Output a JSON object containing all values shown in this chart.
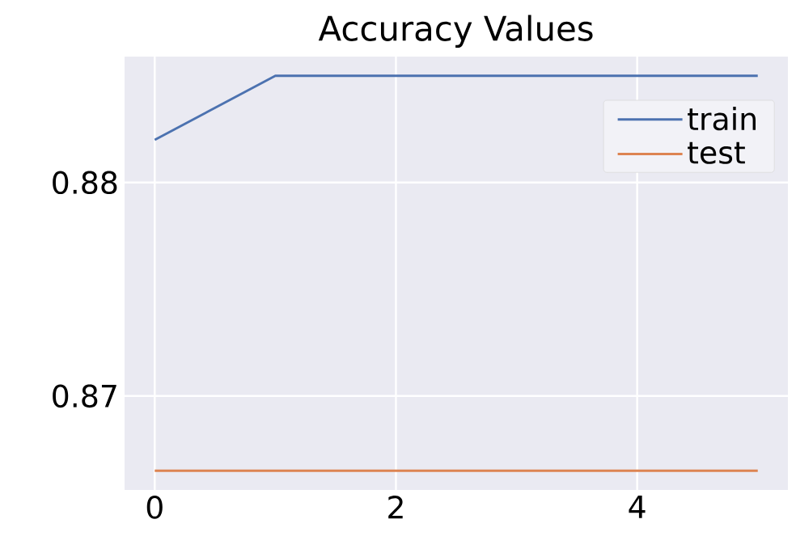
{
  "chart_data": {
    "type": "line",
    "title": "Accuracy Values",
    "x": [
      0,
      1,
      2,
      3,
      4,
      5
    ],
    "series": [
      {
        "name": "train",
        "color": "#4c72b0",
        "values": [
          0.882,
          0.885,
          0.885,
          0.885,
          0.885,
          0.885
        ]
      },
      {
        "name": "test",
        "color": "#dd8452",
        "values": [
          0.8665,
          0.8665,
          0.8665,
          0.8665,
          0.8665,
          0.8665
        ]
      }
    ],
    "xlim": [
      -0.25,
      5.25
    ],
    "ylim": [
      0.8656,
      0.8859
    ],
    "xticks": [
      0,
      2,
      4
    ],
    "yticks": [
      0.87,
      0.88
    ],
    "grid": true,
    "legend": "top right",
    "marker": "none",
    "line_style": "solid"
  }
}
